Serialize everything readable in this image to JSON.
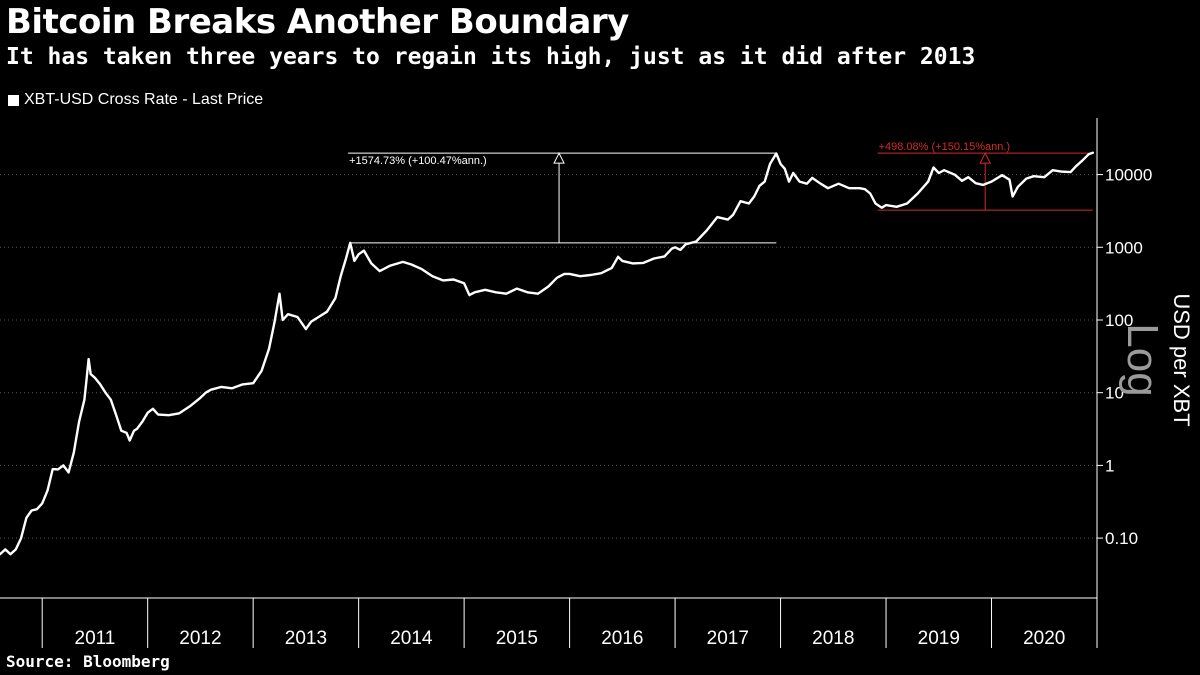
{
  "header": {
    "title": "Bitcoin Breaks Another Boundary",
    "subtitle": "It has taken three years to regain its high, just as it did after 2013"
  },
  "footer": {
    "source": "Source: Bloomberg"
  },
  "chart_data": {
    "type": "line",
    "title": "Bitcoin Breaks Another Boundary",
    "subtitle": "It has taken three years to regain its high, just as it did after 2013",
    "ylabel": "USD per XBT",
    "scale_label": "Log",
    "y_scale": "log",
    "ylim": [
      0.015,
      60000
    ],
    "xlim": [
      2010.6,
      2021.0
    ],
    "legend": {
      "position": "top-left",
      "entries": [
        "XBT-USD Cross Rate - Last Price"
      ]
    },
    "grid": {
      "horizontal": true,
      "style": "dotted",
      "color": "#555555"
    },
    "y_ticks": [
      {
        "value": 10000,
        "label": "10000"
      },
      {
        "value": 1000,
        "label": "1000"
      },
      {
        "value": 100,
        "label": "100"
      },
      {
        "value": 10,
        "label": "10"
      },
      {
        "value": 1,
        "label": "1"
      },
      {
        "value": 0.1,
        "label": "0.10"
      }
    ],
    "x_tick_labels": [
      {
        "x": 2011.5,
        "label": "2011"
      },
      {
        "x": 2012.5,
        "label": "2012"
      },
      {
        "x": 2013.5,
        "label": "2013"
      },
      {
        "x": 2014.5,
        "label": "2014"
      },
      {
        "x": 2015.5,
        "label": "2015"
      },
      {
        "x": 2016.5,
        "label": "2016"
      },
      {
        "x": 2017.5,
        "label": "2017"
      },
      {
        "x": 2018.5,
        "label": "2018"
      },
      {
        "x": 2019.5,
        "label": "2019"
      },
      {
        "x": 2020.5,
        "label": "2020"
      }
    ],
    "x_year_boundaries": [
      2011,
      2012,
      2013,
      2014,
      2015,
      2016,
      2017,
      2018,
      2019,
      2020,
      2021
    ],
    "series": [
      {
        "name": "XBT-USD Cross Rate - Last Price",
        "color": "#ffffff",
        "points": [
          [
            2010.6,
            0.06
          ],
          [
            2010.65,
            0.07
          ],
          [
            2010.7,
            0.06
          ],
          [
            2010.75,
            0.07
          ],
          [
            2010.8,
            0.1
          ],
          [
            2010.85,
            0.19
          ],
          [
            2010.9,
            0.24
          ],
          [
            2010.95,
            0.25
          ],
          [
            2011.0,
            0.3
          ],
          [
            2011.05,
            0.45
          ],
          [
            2011.1,
            0.89
          ],
          [
            2011.15,
            0.88
          ],
          [
            2011.2,
            1.0
          ],
          [
            2011.25,
            0.8
          ],
          [
            2011.3,
            1.5
          ],
          [
            2011.35,
            4.0
          ],
          [
            2011.4,
            8.0
          ],
          [
            2011.42,
            15.0
          ],
          [
            2011.44,
            29.0
          ],
          [
            2011.46,
            18.0
          ],
          [
            2011.5,
            16.0
          ],
          [
            2011.55,
            13.0
          ],
          [
            2011.6,
            10.0
          ],
          [
            2011.65,
            8.0
          ],
          [
            2011.7,
            5.0
          ],
          [
            2011.75,
            3.0
          ],
          [
            2011.8,
            2.8
          ],
          [
            2011.83,
            2.2
          ],
          [
            2011.87,
            3.0
          ],
          [
            2011.9,
            3.2
          ],
          [
            2011.95,
            4.0
          ],
          [
            2012.0,
            5.3
          ],
          [
            2012.05,
            6.0
          ],
          [
            2012.1,
            5.0
          ],
          [
            2012.2,
            4.9
          ],
          [
            2012.3,
            5.2
          ],
          [
            2012.4,
            6.5
          ],
          [
            2012.5,
            8.5
          ],
          [
            2012.55,
            10.0
          ],
          [
            2012.6,
            11.0
          ],
          [
            2012.7,
            12.0
          ],
          [
            2012.8,
            11.5
          ],
          [
            2012.9,
            13.0
          ],
          [
            2013.0,
            13.5
          ],
          [
            2013.08,
            20.0
          ],
          [
            2013.15,
            40.0
          ],
          [
            2013.2,
            90.0
          ],
          [
            2013.25,
            230.0
          ],
          [
            2013.28,
            100.0
          ],
          [
            2013.33,
            120.0
          ],
          [
            2013.42,
            110.0
          ],
          [
            2013.5,
            75.0
          ],
          [
            2013.55,
            95.0
          ],
          [
            2013.62,
            110.0
          ],
          [
            2013.7,
            130.0
          ],
          [
            2013.78,
            200.0
          ],
          [
            2013.83,
            400.0
          ],
          [
            2013.88,
            700.0
          ],
          [
            2013.92,
            1150.0
          ],
          [
            2013.96,
            650.0
          ],
          [
            2014.0,
            800.0
          ],
          [
            2014.05,
            900.0
          ],
          [
            2014.12,
            600.0
          ],
          [
            2014.2,
            470.0
          ],
          [
            2014.3,
            560.0
          ],
          [
            2014.42,
            630.0
          ],
          [
            2014.5,
            580.0
          ],
          [
            2014.6,
            500.0
          ],
          [
            2014.7,
            400.0
          ],
          [
            2014.8,
            350.0
          ],
          [
            2014.9,
            360.0
          ],
          [
            2015.0,
            320.0
          ],
          [
            2015.05,
            220.0
          ],
          [
            2015.1,
            240.0
          ],
          [
            2015.2,
            260.0
          ],
          [
            2015.3,
            240.0
          ],
          [
            2015.4,
            230.0
          ],
          [
            2015.5,
            270.0
          ],
          [
            2015.6,
            240.0
          ],
          [
            2015.7,
            230.0
          ],
          [
            2015.8,
            290.0
          ],
          [
            2015.88,
            380.0
          ],
          [
            2015.95,
            430.0
          ],
          [
            2016.0,
            430.0
          ],
          [
            2016.1,
            400.0
          ],
          [
            2016.2,
            415.0
          ],
          [
            2016.3,
            440.0
          ],
          [
            2016.4,
            520.0
          ],
          [
            2016.46,
            740.0
          ],
          [
            2016.5,
            650.0
          ],
          [
            2016.6,
            600.0
          ],
          [
            2016.7,
            610.0
          ],
          [
            2016.8,
            700.0
          ],
          [
            2016.9,
            750.0
          ],
          [
            2016.97,
            960.0
          ],
          [
            2017.0,
            1000.0
          ],
          [
            2017.05,
            920.0
          ],
          [
            2017.1,
            1100.0
          ],
          [
            2017.2,
            1200.0
          ],
          [
            2017.3,
            1700.0
          ],
          [
            2017.4,
            2600.0
          ],
          [
            2017.45,
            2500.0
          ],
          [
            2017.5,
            2400.0
          ],
          [
            2017.55,
            2800.0
          ],
          [
            2017.62,
            4300.0
          ],
          [
            2017.7,
            4000.0
          ],
          [
            2017.75,
            5000.0
          ],
          [
            2017.8,
            7000.0
          ],
          [
            2017.85,
            8000.0
          ],
          [
            2017.9,
            14000.0
          ],
          [
            2017.96,
            19500.0
          ],
          [
            2018.0,
            14000.0
          ],
          [
            2018.04,
            12000.0
          ],
          [
            2018.08,
            8000.0
          ],
          [
            2018.12,
            10500.0
          ],
          [
            2018.18,
            8000.0
          ],
          [
            2018.25,
            7500.0
          ],
          [
            2018.3,
            9000.0
          ],
          [
            2018.38,
            7500.0
          ],
          [
            2018.45,
            6500.0
          ],
          [
            2018.55,
            7500.0
          ],
          [
            2018.65,
            6500.0
          ],
          [
            2018.75,
            6500.0
          ],
          [
            2018.8,
            6300.0
          ],
          [
            2018.85,
            5500.0
          ],
          [
            2018.9,
            4000.0
          ],
          [
            2018.96,
            3500.0
          ],
          [
            2019.0,
            3800.0
          ],
          [
            2019.1,
            3600.0
          ],
          [
            2019.2,
            4000.0
          ],
          [
            2019.3,
            5500.0
          ],
          [
            2019.4,
            8000.0
          ],
          [
            2019.45,
            12500.0
          ],
          [
            2019.5,
            10500.0
          ],
          [
            2019.55,
            11500.0
          ],
          [
            2019.65,
            10000.0
          ],
          [
            2019.72,
            8200.0
          ],
          [
            2019.78,
            9200.0
          ],
          [
            2019.85,
            7600.0
          ],
          [
            2019.92,
            7200.0
          ],
          [
            2020.0,
            8000.0
          ],
          [
            2020.1,
            9800.0
          ],
          [
            2020.17,
            8500.0
          ],
          [
            2020.2,
            5000.0
          ],
          [
            2020.25,
            6800.0
          ],
          [
            2020.33,
            8800.0
          ],
          [
            2020.4,
            9500.0
          ],
          [
            2020.5,
            9200.0
          ],
          [
            2020.58,
            11500.0
          ],
          [
            2020.66,
            11000.0
          ],
          [
            2020.75,
            10800.0
          ],
          [
            2020.8,
            13000.0
          ],
          [
            2020.86,
            15500.0
          ],
          [
            2020.92,
            19000.0
          ],
          [
            2020.96,
            20000.0
          ]
        ]
      }
    ],
    "annotations": [
      {
        "label": "+1574.73% (+100.47%ann.)",
        "color": "#ffffff",
        "top_line": {
          "x": [
            2013.9,
            2017.96
          ],
          "y": 19700
        },
        "bottom_line": {
          "x": [
            2013.92,
            2017.96
          ],
          "y": 1150
        },
        "arrow": {
          "x": 2015.9,
          "y_from": 1150,
          "y_to": 19700
        }
      },
      {
        "label": "+498.08% (+150.15%ann.)",
        "color": "#d42a2a",
        "top_line": {
          "x": [
            2018.92,
            2020.96
          ],
          "y": 19700
        },
        "bottom_line": {
          "x": [
            2018.92,
            2020.96
          ],
          "y": 3250
        },
        "arrow": {
          "x": 2019.94,
          "y_from": 3250,
          "y_to": 19700
        }
      }
    ]
  }
}
